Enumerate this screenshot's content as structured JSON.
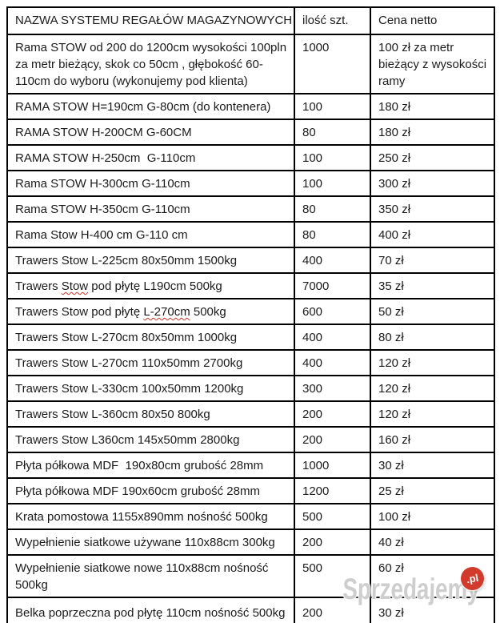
{
  "table": {
    "headers": [
      "NAZWA SYSTEMU REGAŁÓW MAGAZYNOWYCH",
      "ilość szt.",
      "Cena netto"
    ],
    "rows": [
      {
        "name": "Rama STOW od 200 do 1200cm wysokości 100pln za metr bieżący, skok co 50cm , głębokość 60-110cm do wyboru (wykonujemy pod klienta)",
        "qty": "1000",
        "price": "100 zł za metr bieżący z wysokości ramy"
      },
      {
        "name": "RAMA STOW H=190cm G-80cm (do kontenera)",
        "qty": "100",
        "price": "180 zł"
      },
      {
        "name": "RAMA STOW H-200CM G-60CM",
        "qty": "80",
        "price": "180 zł"
      },
      {
        "name": "RAMA STOW H-250cm  G-110cm",
        "qty": "100",
        "price": "250 zł"
      },
      {
        "name": "Rama STOW H-300cm G-110cm",
        "qty": "100",
        "price": "300 zł"
      },
      {
        "name": "Rama STOW H-350cm G-110cm",
        "qty": "80",
        "price": "350 zł"
      },
      {
        "name": "Rama Stow H-400 cm G-110 cm",
        "qty": "80",
        "price": "400 zł"
      },
      {
        "name": "Trawers Stow L-225cm 80x50mm 1500kg",
        "qty": "400",
        "price": "70 zł"
      },
      {
        "name": [
          {
            "t": "Trawers "
          },
          {
            "t": "Stow",
            "err": true
          },
          {
            "t": " pod płytę L190cm 500kg"
          }
        ],
        "qty": "7000",
        "price": "35 zł"
      },
      {
        "name": [
          {
            "t": "Trawers Stow pod płytę "
          },
          {
            "t": "L-270cm",
            "err": true
          },
          {
            "t": " 500kg"
          }
        ],
        "qty": "600",
        "price": "50 zł"
      },
      {
        "name": "Trawers Stow L-270cm 80x50mm 1000kg",
        "qty": "400",
        "price": "80 zł"
      },
      {
        "name": "Trawers Stow L-270cm 110x50mm 2700kg",
        "qty": "400",
        "price": "120 zł"
      },
      {
        "name": "Trawers Stow L-330cm 100x50mm 1200kg",
        "qty": "300",
        "price": "120 zł"
      },
      {
        "name": "Trawers Stow L-360cm 80x50 800kg",
        "qty": "200",
        "price": "120 zł"
      },
      {
        "name": "Trawers Stow L360cm 145x50mm 2800kg",
        "qty": "200",
        "price": "160 zł"
      },
      {
        "name": "Płyta półkowa MDF  190x80cm grubość 28mm",
        "qty": "1000",
        "price": "30 zł"
      },
      {
        "name": "Płyta półkowa MDF 190x60cm grubość 28mm",
        "qty": "1200",
        "price": "25 zł"
      },
      {
        "name": "Krata pomostowa 1155x890mm nośność 500kg",
        "qty": "500",
        "price": "100 zł"
      },
      {
        "name": "Wypełnienie siatkowe używane 110x88cm 300kg",
        "qty": "200",
        "price": "40 zł"
      },
      {
        "name": "Wypełnienie siatkowe nowe 110x88cm nośność 500kg",
        "qty": "500",
        "price": "60 zł"
      },
      {
        "name": "Belka poprzeczna pod płytę 110cm nośność 500kg",
        "qty": "200",
        "price": "30 zł"
      }
    ]
  },
  "watermark": {
    "text": "Sprzedajemy",
    "badge": ".pl"
  },
  "colors": {
    "border": "#000000",
    "text": "#1b1b1b",
    "squiggle": "#e03425",
    "watermark_badge_red": "#d23b2b",
    "watermark_gray": "#7d7d7d"
  }
}
